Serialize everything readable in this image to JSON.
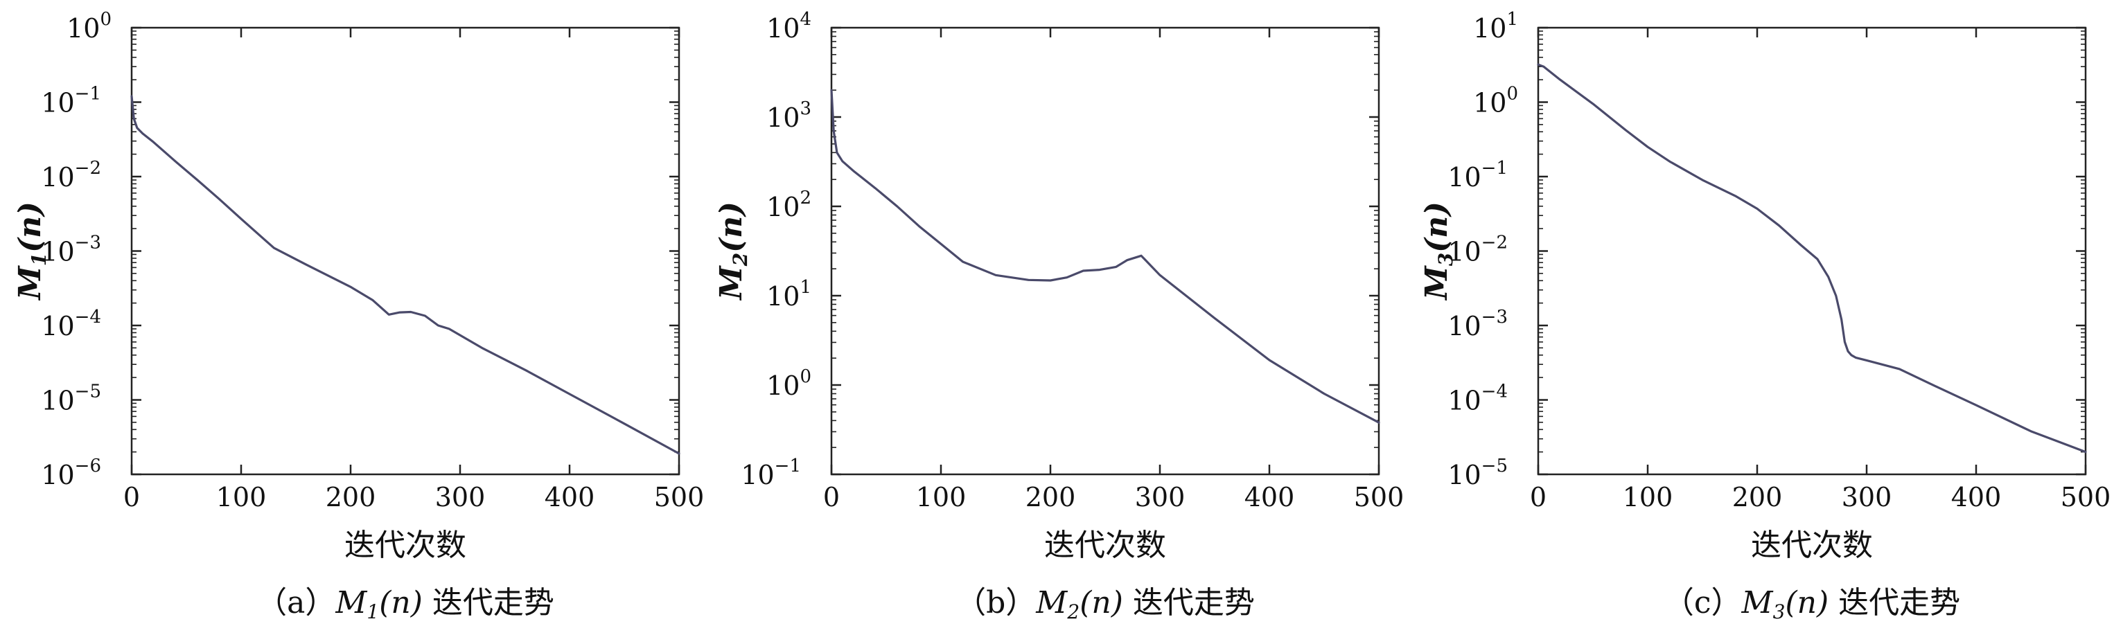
{
  "chart_data": [
    {
      "type": "line",
      "panel": "a",
      "caption": {
        "prefix": "（a）",
        "symbol": "M",
        "subscript": "1",
        "arg": "(n)",
        "suffix": " 迭代走势"
      },
      "xlabel": "迭代次数",
      "ylabel": {
        "symbol": "M",
        "subscript": "1",
        "arg": "(n)"
      },
      "xlim": [
        0,
        500
      ],
      "ylim": [
        1e-06,
        1
      ],
      "yscale": "log",
      "x_ticks": [
        "0",
        "100",
        "200",
        "300",
        "400",
        "500"
      ],
      "y_ticks": [
        "10^-6",
        "10^-5",
        "10^-4",
        "10^-3",
        "10^-2",
        "10^-1",
        "10^0"
      ],
      "color": "#4a4a6a",
      "series": [
        {
          "x": [
            0,
            2,
            5,
            10,
            20,
            40,
            60,
            80,
            100,
            130,
            160,
            200,
            220,
            235,
            245,
            255,
            268,
            280,
            290,
            320,
            360,
            400,
            450,
            500
          ],
          "y": [
            0.12,
            0.06,
            0.045,
            0.038,
            0.029,
            0.016,
            0.009,
            0.005,
            0.0027,
            0.0011,
            0.00065,
            0.00033,
            0.00022,
            0.00014,
            0.00015,
            0.000152,
            0.000135,
            0.0001,
            9e-05,
            5e-05,
            2.5e-05,
            1.2e-05,
            4.8e-06,
            1.9e-06
          ]
        }
      ]
    },
    {
      "type": "line",
      "panel": "b",
      "caption": {
        "prefix": "（b）",
        "symbol": "M",
        "subscript": "2",
        "arg": "(n)",
        "suffix": " 迭代走势"
      },
      "xlabel": "迭代次数",
      "ylabel": {
        "symbol": "M",
        "subscript": "2",
        "arg": "(n)"
      },
      "xlim": [
        0,
        500
      ],
      "ylim": [
        0.1,
        10000
      ],
      "yscale": "log",
      "x_ticks": [
        "0",
        "100",
        "200",
        "300",
        "400",
        "500"
      ],
      "y_ticks": [
        "10^-1",
        "10^0",
        "10^1",
        "10^2",
        "10^3",
        "10^4"
      ],
      "color": "#4a4a6a",
      "series": [
        {
          "x": [
            0,
            2,
            5,
            10,
            20,
            40,
            60,
            80,
            100,
            120,
            150,
            180,
            200,
            215,
            230,
            245,
            260,
            270,
            283,
            300,
            350,
            400,
            450,
            500
          ],
          "y": [
            2000,
            700,
            400,
            320,
            250,
            160,
            100,
            60,
            38,
            24,
            17,
            15,
            14.8,
            16,
            19,
            19.5,
            21,
            25,
            28,
            17,
            5.6,
            1.9,
            0.8,
            0.38
          ]
        }
      ]
    },
    {
      "type": "line",
      "panel": "c",
      "caption": {
        "prefix": "（c）",
        "symbol": "M",
        "subscript": "3",
        "arg": "(n)",
        "suffix": " 迭代走势"
      },
      "xlabel": "迭代次数",
      "ylabel": {
        "symbol": "M",
        "subscript": "3",
        "arg": "(n)"
      },
      "xlim": [
        0,
        500
      ],
      "ylim": [
        1e-05,
        10
      ],
      "yscale": "log",
      "x_ticks": [
        "0",
        "100",
        "200",
        "300",
        "400",
        "500"
      ],
      "y_ticks": [
        "10^-5",
        "10^-4",
        "10^-3",
        "10^-2",
        "10^-1",
        "10^0",
        "10^1"
      ],
      "color": "#4a4a6a",
      "series": [
        {
          "x": [
            0,
            5,
            20,
            50,
            80,
            100,
            120,
            150,
            180,
            200,
            220,
            240,
            255,
            265,
            272,
            277,
            280,
            283,
            286,
            290,
            300,
            330,
            360,
            400,
            450,
            500
          ],
          "y": [
            3.2,
            3.0,
            2.0,
            0.95,
            0.42,
            0.25,
            0.16,
            0.09,
            0.055,
            0.037,
            0.022,
            0.012,
            0.0078,
            0.0045,
            0.0025,
            0.0012,
            0.0006,
            0.00045,
            0.0004,
            0.00037,
            0.00034,
            0.00026,
            0.00016,
            8.5e-05,
            3.8e-05,
            2e-05
          ]
        }
      ]
    }
  ]
}
